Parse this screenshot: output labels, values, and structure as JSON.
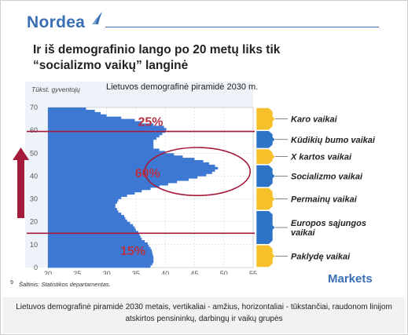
{
  "header": {
    "logo_text": "Nordea",
    "title": "Ir iš demografinio lango po 20 metų liks tik “socializmo vaikų” langinė",
    "markets_label": "Markets",
    "source": "Šaltinis: Statistikos departamentas.",
    "source_bullet": "9"
  },
  "caption": "Lietuvos demografinė piramidė 2030 metais, vertikaliai - amžius, horizontaliai - tūkstančiai, raudonom linijom atskirtos pensininkų, darbingų ir vaikų grupės",
  "colors": {
    "bars": "#3d78d3",
    "axis_band": "#d7e3f1",
    "red": "#a51a3b",
    "label_red": "#b53344",
    "tab_yellow": "#f5c02a",
    "tab_blue": "#2d74c7",
    "brand": "#3a6fb5"
  },
  "chart_data": {
    "type": "bar",
    "orientation": "horizontal",
    "title": "Lietuvos demografinė piramidė 2030 m.",
    "ylabel": "Tūkst. gyventojų",
    "xlim": [
      20,
      55
    ],
    "ylim": [
      0,
      70
    ],
    "xticks": [
      20,
      25,
      30,
      35,
      40,
      45,
      50,
      55
    ],
    "yticks": [
      0,
      10,
      20,
      30,
      40,
      50,
      60,
      70
    ],
    "grid": true,
    "ages": [
      0,
      1,
      2,
      3,
      4,
      5,
      6,
      7,
      8,
      9,
      10,
      11,
      12,
      13,
      14,
      15,
      16,
      17,
      18,
      19,
      20,
      21,
      22,
      23,
      24,
      25,
      26,
      27,
      28,
      29,
      30,
      31,
      32,
      33,
      34,
      35,
      36,
      37,
      38,
      39,
      40,
      41,
      42,
      43,
      44,
      45,
      46,
      47,
      48,
      49,
      50,
      51,
      52,
      53,
      54,
      55,
      56,
      57,
      58,
      59,
      60,
      61,
      62,
      63,
      64,
      65,
      66,
      67,
      68,
      69
    ],
    "values": [
      37.5,
      37.8,
      38,
      38,
      38,
      37.9,
      37.8,
      37.7,
      37.5,
      37.2,
      37,
      36.5,
      36,
      35.8,
      35.6,
      35.4,
      35,
      34.8,
      34.5,
      34,
      33.5,
      33.2,
      33,
      32.5,
      32,
      31.8,
      31.5,
      31.5,
      31.8,
      32,
      32.5,
      33.5,
      34.8,
      36,
      37.5,
      39,
      40.5,
      42,
      44,
      45.5,
      47,
      48,
      48.5,
      49,
      48.5,
      47.5,
      46.5,
      45,
      43,
      41.5,
      40,
      39,
      38,
      38,
      38,
      38,
      38.5,
      39,
      39.5,
      40,
      40.2,
      39.8,
      38,
      36,
      34.8,
      32.5,
      30,
      29,
      28,
      26.5
    ],
    "separators": [
      15,
      59.5
    ],
    "annotations": [
      {
        "text": "25%",
        "x": 37.5,
        "y": 64
      },
      {
        "text": "60%",
        "x": 37,
        "y": 41.5
      },
      {
        "text": "15%",
        "x": 34.5,
        "y": 7.5
      }
    ],
    "highlight_ellipse": {
      "cx": 45.5,
      "cy": 42,
      "rx": 9,
      "ry": 10.5
    }
  },
  "generations": [
    {
      "label": "Karo vaikai",
      "color": "yellow",
      "from": 60,
      "to": 70
    },
    {
      "label": "Kūdikių bumo vaikai",
      "color": "blue",
      "from": 52,
      "to": 60
    },
    {
      "label": "X kartos vaikai",
      "color": "yellow",
      "from": 45,
      "to": 52
    },
    {
      "label": "Socializmo vaikai",
      "color": "blue",
      "from": 35,
      "to": 45
    },
    {
      "label": "Permainų vaikai",
      "color": "yellow",
      "from": 25,
      "to": 35
    },
    {
      "label": "Europos sąjungos vaikai",
      "color": "blue",
      "from": 10,
      "to": 25
    },
    {
      "label": "Paklydę vaikai",
      "color": "yellow",
      "from": 0,
      "to": 10
    }
  ]
}
